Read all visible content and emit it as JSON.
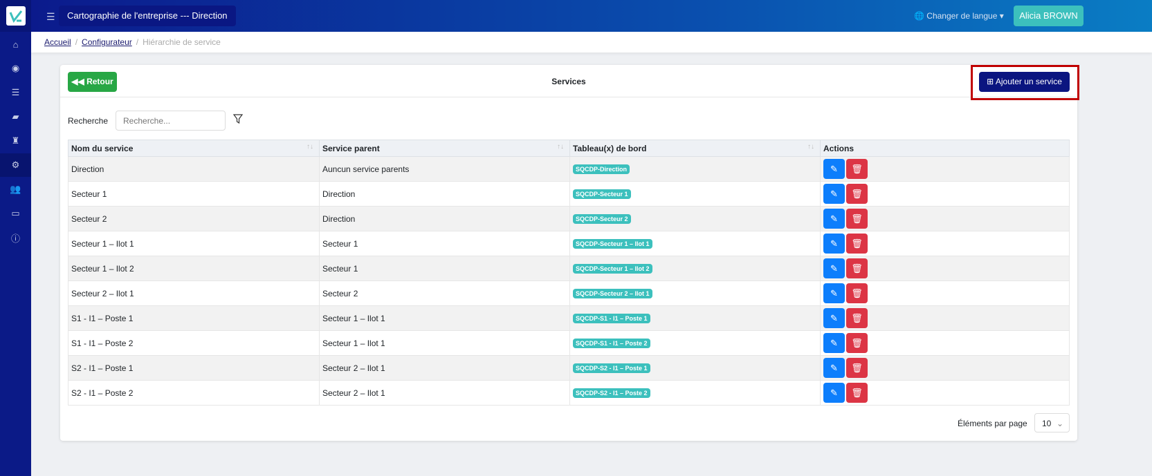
{
  "app": {
    "title": "Cartographie de l'entreprise --- Direction",
    "language_label": "Changer de langue",
    "user": "Alicia BROWN"
  },
  "sidebar": {
    "items": [
      {
        "icon": "home-icon"
      },
      {
        "icon": "palette-icon"
      },
      {
        "icon": "list-icon"
      },
      {
        "icon": "folder-open-icon"
      },
      {
        "icon": "tasks-icon"
      },
      {
        "icon": "cogs-icon",
        "active": true
      },
      {
        "icon": "users-icon"
      },
      {
        "icon": "chalkboard-icon"
      },
      {
        "icon": "info-icon"
      }
    ]
  },
  "breadcrumb": {
    "items": [
      "Accueil",
      "Configurateur"
    ],
    "current": "Hiérarchie de service"
  },
  "card": {
    "back_label": "Retour",
    "title": "Services",
    "add_label": "Ajouter un service"
  },
  "search": {
    "label": "Recherche",
    "placeholder": "Recherche..."
  },
  "table": {
    "headers": [
      "Nom du service",
      "Service parent",
      "Tableau(x) de bord",
      "Actions"
    ],
    "rows": [
      {
        "name": "Direction",
        "parent": "Auncun service parents",
        "board": "SQCDP-Direction"
      },
      {
        "name": "Secteur 1",
        "parent": "Direction",
        "board": "SQCDP-Secteur 1"
      },
      {
        "name": "Secteur 2",
        "parent": "Direction",
        "board": "SQCDP-Secteur 2"
      },
      {
        "name": "Secteur 1 – Ilot 1",
        "parent": "Secteur 1",
        "board": "SQCDP-Secteur 1 – Ilot 1"
      },
      {
        "name": "Secteur 1 – Ilot 2",
        "parent": "Secteur 1",
        "board": "SQCDP-Secteur 1 – Ilot 2"
      },
      {
        "name": "Secteur 2 – Ilot 1",
        "parent": "Secteur 2",
        "board": "SQCDP-Secteur 2 – Ilot 1"
      },
      {
        "name": "S1 - I1 – Poste 1",
        "parent": "Secteur 1 – Ilot 1",
        "board": "SQCDP-S1 - I1 – Poste 1"
      },
      {
        "name": "S1 - I1 – Poste 2",
        "parent": "Secteur 1 – Ilot 1",
        "board": "SQCDP-S1 - I1 – Poste 2"
      },
      {
        "name": "S2 - I1 – Poste 1",
        "parent": "Secteur 2 – Ilot 1",
        "board": "SQCDP-S2 - I1 – Poste 1"
      },
      {
        "name": "S2 - I1 – Poste 2",
        "parent": "Secteur 2 – Ilot 1",
        "board": "SQCDP-S2 - I1 – Poste 2"
      }
    ]
  },
  "pagination": {
    "per_page_label": "Éléments par page",
    "per_page": "10"
  },
  "colors": {
    "sidebar": "#0b1a87",
    "accent_teal": "#3cc0bd",
    "primary_navy": "#0b1580",
    "edit": "#0d7efc",
    "delete": "#dc3545",
    "back": "#28a745",
    "highlight": "#c00000"
  }
}
